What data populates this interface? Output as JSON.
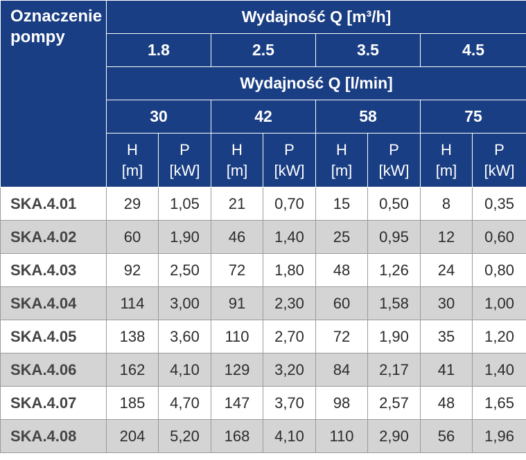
{
  "header": {
    "pump_label_line1": "Oznaczenie",
    "pump_label_line2": "pompy",
    "flow_m3h_title": "Wydajność Q [m³/h]",
    "flow_m3h_values": [
      "1.8",
      "2.5",
      "3.5",
      "4.5"
    ],
    "flow_lmin_title": "Wydajność Q [l/min]",
    "flow_lmin_values": [
      "30",
      "42",
      "58",
      "75"
    ],
    "col_h": "H",
    "col_h_unit": "[m]",
    "col_p": "P",
    "col_p_unit": "[kW]"
  },
  "rows": [
    {
      "model": "SKA.4.01",
      "cells": [
        "29",
        "1,05",
        "21",
        "0,70",
        "15",
        "0,50",
        "8",
        "0,35"
      ]
    },
    {
      "model": "SKA.4.02",
      "cells": [
        "60",
        "1,90",
        "46",
        "1,40",
        "25",
        "0,95",
        "12",
        "0,60"
      ]
    },
    {
      "model": "SKA.4.03",
      "cells": [
        "92",
        "2,50",
        "72",
        "1,80",
        "48",
        "1,26",
        "24",
        "0,80"
      ]
    },
    {
      "model": "SKA.4.04",
      "cells": [
        "114",
        "3,00",
        "91",
        "2,30",
        "60",
        "1,58",
        "30",
        "1,00"
      ]
    },
    {
      "model": "SKA.4.05",
      "cells": [
        "138",
        "3,60",
        "110",
        "2,70",
        "72",
        "1,90",
        "35",
        "1,20"
      ]
    },
    {
      "model": "SKA.4.06",
      "cells": [
        "162",
        "4,10",
        "129",
        "3,20",
        "84",
        "2,17",
        "41",
        "1,40"
      ]
    },
    {
      "model": "SKA.4.07",
      "cells": [
        "185",
        "4,70",
        "147",
        "3,70",
        "98",
        "2,57",
        "48",
        "1,65"
      ]
    },
    {
      "model": "SKA.4.08",
      "cells": [
        "204",
        "5,20",
        "168",
        "4,10",
        "110",
        "2,90",
        "56",
        "1,96"
      ]
    }
  ]
}
